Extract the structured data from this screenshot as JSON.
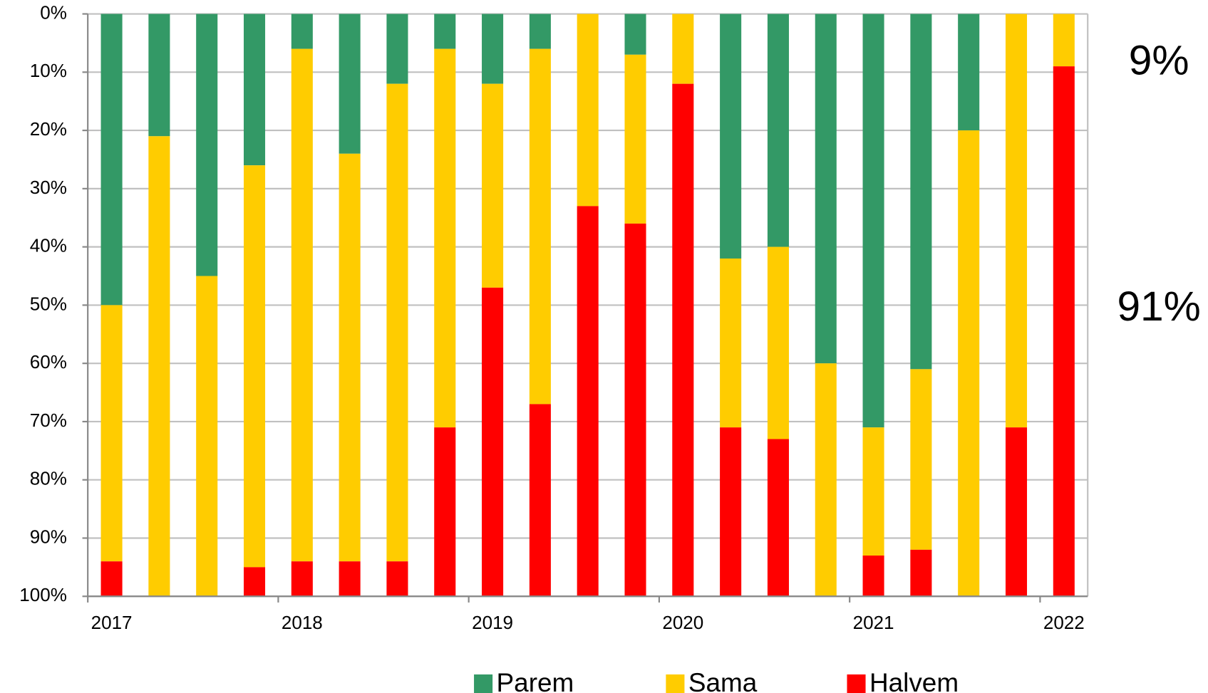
{
  "chart_data": {
    "type": "stacked_bar",
    "categories": [
      "2017",
      null,
      null,
      null,
      "2018",
      null,
      null,
      null,
      "2019",
      null,
      null,
      null,
      "2020",
      null,
      null,
      null,
      "2021",
      null,
      null,
      null,
      "2022"
    ],
    "series": [
      {
        "name": "Parem",
        "color": "#339966",
        "values": [
          50,
          21,
          45,
          26,
          6,
          24,
          12,
          6,
          12,
          6,
          0,
          7,
          0,
          42,
          40,
          60,
          71,
          61,
          20,
          0,
          0
        ]
      },
      {
        "name": "Sama",
        "color": "#ffcc00",
        "values": [
          44,
          79,
          55,
          69,
          88,
          70,
          82,
          65,
          35,
          61,
          33,
          29,
          12,
          29,
          33,
          40,
          22,
          31,
          80,
          71,
          9
        ]
      },
      {
        "name": "Halvem",
        "color": "#ff0000",
        "values": [
          6,
          0,
          0,
          5,
          6,
          6,
          6,
          29,
          53,
          33,
          67,
          64,
          88,
          29,
          27,
          0,
          7,
          8,
          0,
          29,
          91
        ]
      }
    ],
    "ylim": [
      0,
      100
    ],
    "y_inverted": true,
    "yticks": [
      {
        "value": 0,
        "label": "0%"
      },
      {
        "value": 10,
        "label": "10%"
      },
      {
        "value": 20,
        "label": "20%"
      },
      {
        "value": 30,
        "label": "30%"
      },
      {
        "value": 40,
        "label": "40%"
      },
      {
        "value": 50,
        "label": "50%"
      },
      {
        "value": 60,
        "label": "60%"
      },
      {
        "value": 70,
        "label": "70%"
      },
      {
        "value": 80,
        "label": "80%"
      },
      {
        "value": 90,
        "label": "90%"
      },
      {
        "value": 100,
        "label": "100%"
      }
    ],
    "grid": true,
    "legend": "bottom",
    "annotations": [
      "9%",
      "91%"
    ]
  }
}
